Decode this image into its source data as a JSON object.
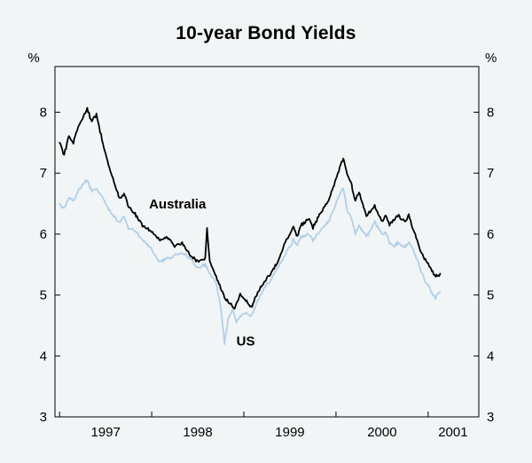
{
  "chart_data": {
    "type": "line",
    "title": "10-year Bond Yields",
    "unit_left": "%",
    "unit_right": "%",
    "xlim": [
      1996.95,
      2001.55
    ],
    "ylim": [
      3,
      8.75
    ],
    "yticks": [
      3,
      4,
      5,
      6,
      7,
      8
    ],
    "xticks": [
      1997,
      1998,
      1999,
      2000,
      2001
    ],
    "xtick_labels": [
      "1997",
      "1998",
      "1999",
      "2000",
      "2001"
    ],
    "xtick_label_positions": [
      1997.5,
      1998.5,
      1999.5,
      2000.5,
      2001.27
    ],
    "grid": false,
    "legend_position": "inline-labels",
    "jitter": 0.035,
    "colors": {
      "background": "#f2f5f6",
      "frame": "#000000",
      "australia_line": "#000000",
      "us_line": "#b0d0ea"
    },
    "series": [
      {
        "name": "Australia",
        "color": "#000000",
        "width": 1.8,
        "label_pos": [
          1998.28,
          6.42
        ],
        "x": [
          1997.0,
          1997.05,
          1997.1,
          1997.15,
          1997.2,
          1997.3,
          1997.35,
          1997.4,
          1997.5,
          1997.58,
          1997.65,
          1997.7,
          1997.75,
          1997.83,
          1997.9,
          1998.0,
          1998.08,
          1998.17,
          1998.25,
          1998.33,
          1998.42,
          1998.5,
          1998.58,
          1998.6,
          1998.63,
          1998.7,
          1998.75,
          1998.79,
          1998.85,
          1998.9,
          1998.96,
          1999.0,
          1999.08,
          1999.15,
          1999.21,
          1999.29,
          1999.37,
          1999.46,
          1999.54,
          1999.58,
          1999.62,
          1999.71,
          1999.75,
          1999.83,
          1999.92,
          2000.0,
          2000.04,
          2000.08,
          2000.12,
          2000.17,
          2000.21,
          2000.25,
          2000.33,
          2000.42,
          2000.5,
          2000.54,
          2000.58,
          2000.63,
          2000.67,
          2000.75,
          2000.79,
          2000.83,
          2000.88,
          2000.92,
          2000.96,
          2001.0,
          2001.04,
          2001.08,
          2001.13
        ],
        "values": [
          7.5,
          7.3,
          7.6,
          7.5,
          7.75,
          8.05,
          7.85,
          7.95,
          7.3,
          6.9,
          6.6,
          6.65,
          6.45,
          6.3,
          6.15,
          6.05,
          5.9,
          5.95,
          5.8,
          5.85,
          5.65,
          5.55,
          5.6,
          6.08,
          5.55,
          5.3,
          5.1,
          4.95,
          4.85,
          4.78,
          5.0,
          4.95,
          4.8,
          5.05,
          5.2,
          5.35,
          5.55,
          5.9,
          6.1,
          5.95,
          6.15,
          6.25,
          6.1,
          6.35,
          6.55,
          6.9,
          7.1,
          7.25,
          7.0,
          6.8,
          6.55,
          6.7,
          6.3,
          6.45,
          6.2,
          6.3,
          6.15,
          6.25,
          6.3,
          6.2,
          6.3,
          6.1,
          5.9,
          5.7,
          5.6,
          5.5,
          5.4,
          5.3,
          5.35
        ]
      },
      {
        "name": "US",
        "color": "#b0d0ea",
        "width": 1.8,
        "label_pos": [
          1999.02,
          4.17
        ],
        "x": [
          1997.0,
          1997.05,
          1997.1,
          1997.15,
          1997.2,
          1997.3,
          1997.35,
          1997.4,
          1997.5,
          1997.58,
          1997.65,
          1997.7,
          1997.75,
          1997.83,
          1997.9,
          1998.0,
          1998.08,
          1998.17,
          1998.25,
          1998.33,
          1998.42,
          1998.5,
          1998.58,
          1998.63,
          1998.7,
          1998.75,
          1998.79,
          1998.83,
          1998.88,
          1998.92,
          1998.96,
          1999.0,
          1999.08,
          1999.15,
          1999.21,
          1999.29,
          1999.37,
          1999.46,
          1999.54,
          1999.58,
          1999.62,
          1999.71,
          1999.75,
          1999.83,
          1999.92,
          2000.0,
          2000.04,
          2000.08,
          2000.12,
          2000.17,
          2000.21,
          2000.25,
          2000.33,
          2000.42,
          2000.5,
          2000.54,
          2000.58,
          2000.63,
          2000.67,
          2000.75,
          2000.79,
          2000.83,
          2000.88,
          2000.92,
          2000.96,
          2001.0,
          2001.04,
          2001.08,
          2001.13
        ],
        "values": [
          6.5,
          6.4,
          6.6,
          6.55,
          6.7,
          6.9,
          6.7,
          6.75,
          6.5,
          6.3,
          6.2,
          6.3,
          6.1,
          6.05,
          5.9,
          5.75,
          5.55,
          5.6,
          5.65,
          5.7,
          5.6,
          5.45,
          5.5,
          5.35,
          5.2,
          4.8,
          4.2,
          4.6,
          4.75,
          4.55,
          4.65,
          4.7,
          4.65,
          4.9,
          5.1,
          5.25,
          5.45,
          5.7,
          5.9,
          5.8,
          5.95,
          6.0,
          5.9,
          6.05,
          6.2,
          6.5,
          6.65,
          6.75,
          6.4,
          6.25,
          6.0,
          6.15,
          5.95,
          6.2,
          6.0,
          6.05,
          5.85,
          5.8,
          5.85,
          5.8,
          5.85,
          5.75,
          5.6,
          5.4,
          5.25,
          5.15,
          5.05,
          4.95,
          5.05
        ]
      }
    ]
  }
}
